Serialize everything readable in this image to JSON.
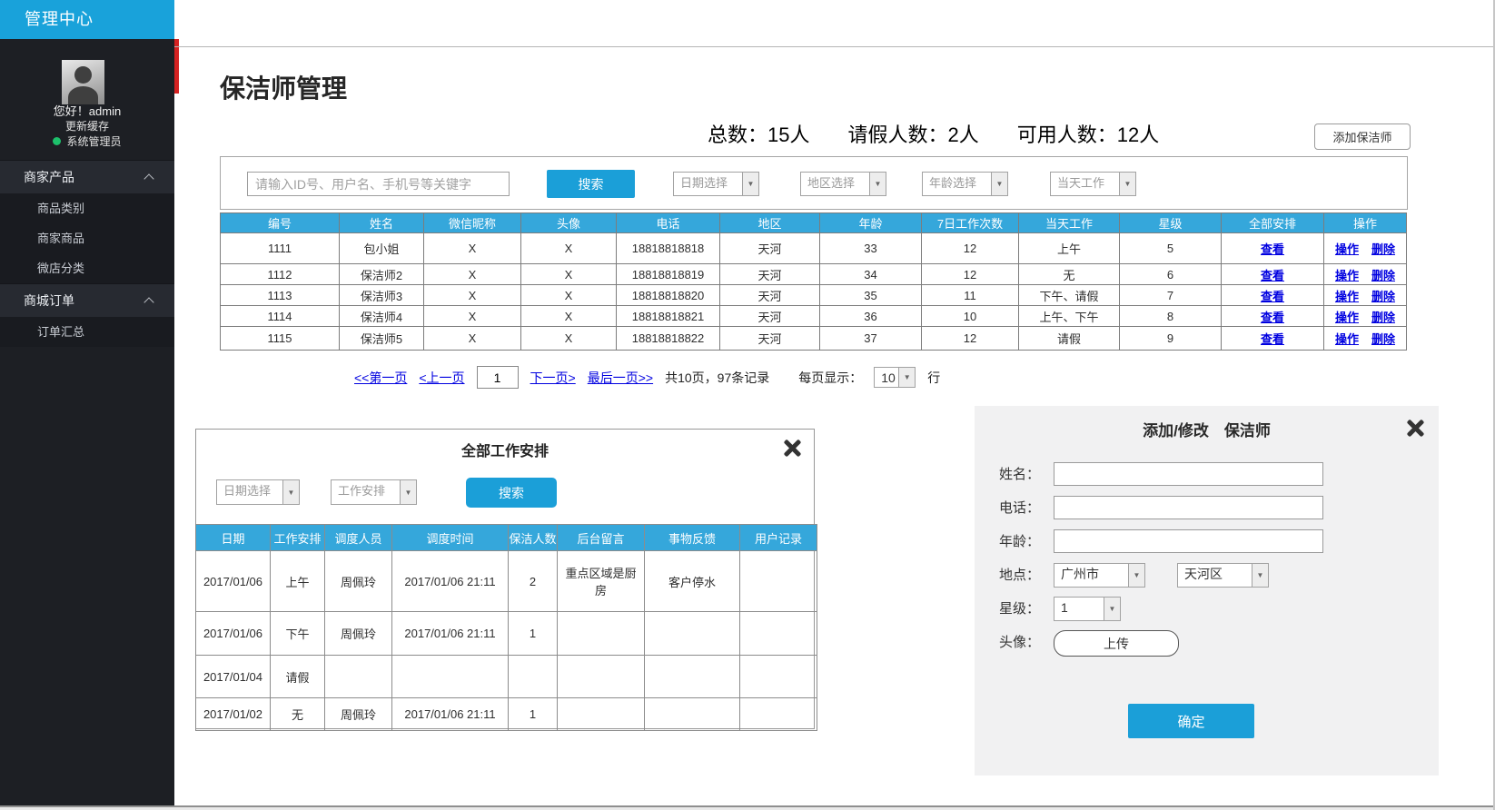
{
  "colors": {
    "accent_blue": "#1b9fd8",
    "table_header_blue": "#35a7db",
    "link_blue": "#0000e0",
    "sidebar_dark": "#1d1f24",
    "red_accent": "#d52222",
    "online_green": "#1dc06b",
    "panel_gray": "#f1f1f2"
  },
  "icons": {
    "dropdown_arrow": "▼",
    "chevron_up": "css-chevron",
    "close": "css-x",
    "online_dot": "css-circle",
    "avatar": "css-silhouette"
  },
  "app_header": {
    "title": "管理中心"
  },
  "sidebar": {
    "greeting": "您好！admin",
    "cache_link": "更新缓存",
    "role": "系统管理员",
    "menus": [
      {
        "label": "商家产品",
        "children": [
          "商品类别",
          "商家商品",
          "微店分类"
        ]
      },
      {
        "label": "商城订单",
        "children": [
          "订单汇总"
        ]
      }
    ]
  },
  "page": {
    "title": "保洁师管理",
    "stats": [
      {
        "text": "总数：15人"
      },
      {
        "text": "请假人数：2人"
      },
      {
        "text": "可用人数：12人"
      }
    ],
    "add_button": "添加保洁师"
  },
  "filters": {
    "search_placeholder": "请输入ID号、用户名、手机号等关键字",
    "search_button": "搜索",
    "dropdowns": [
      "日期选择",
      "地区选择",
      "年龄选择",
      "当天工作"
    ]
  },
  "cleaner_table": {
    "headers": [
      "编号",
      "姓名",
      "微信昵称",
      "头像",
      "电话",
      "地区",
      "年龄",
      "7日工作次数",
      "当天工作",
      "星级",
      "全部安排",
      "操作"
    ],
    "links": {
      "view": "查看",
      "operate": "操作",
      "delete": "删除"
    },
    "rows": [
      [
        "1111",
        "包小姐",
        "X",
        "X",
        "18818818818",
        "天河",
        "33",
        "12",
        "上午",
        "5"
      ],
      [
        "1112",
        "保洁师2",
        "X",
        "X",
        "18818818819",
        "天河",
        "34",
        "12",
        "无",
        "6"
      ],
      [
        "1113",
        "保洁师3",
        "X",
        "X",
        "18818818820",
        "天河",
        "35",
        "11",
        "下午、请假",
        "7"
      ],
      [
        "1114",
        "保洁师4",
        "X",
        "X",
        "18818818821",
        "天河",
        "36",
        "10",
        "上午、下午",
        "8"
      ],
      [
        "1115",
        "保洁师5",
        "X",
        "X",
        "18818818822",
        "天河",
        "37",
        "12",
        "请假",
        "9"
      ]
    ]
  },
  "pagination": {
    "first": "<<第一页",
    "prev": "<上一页",
    "page_value": "1",
    "next": "下一页>",
    "last": "最后一页>>",
    "summary": "共10页，97条记录",
    "per_page_label": "每页显示：",
    "per_page_value": "10",
    "row_unit": "行"
  },
  "schedule_modal": {
    "title": "全部工作安排",
    "dropdowns": [
      "日期选择",
      "工作安排"
    ],
    "search_button": "搜索",
    "headers": [
      "日期",
      "工作安排",
      "调度人员",
      "调度时间",
      "保洁人数",
      "后台留言",
      "事物反馈",
      "用户记录"
    ],
    "rows": [
      [
        "2017/01/06",
        "上午",
        "周佩玲",
        "2017/01/06  21:11",
        "2",
        "重点区域是厨房",
        "客户停水",
        ""
      ],
      [
        "2017/01/06",
        "下午",
        "周佩玲",
        "2017/01/06  21:11",
        "1",
        "",
        "",
        ""
      ],
      [
        "2017/01/04",
        "请假",
        "",
        "",
        "",
        "",
        "",
        ""
      ],
      [
        "2017/01/02",
        "无",
        "周佩玲",
        "2017/01/06  21:11",
        "1",
        "",
        "",
        ""
      ]
    ]
  },
  "cleaner_form": {
    "title": "添加/修改　保洁师",
    "labels": {
      "name": "姓名：",
      "phone": "电话：",
      "age": "年龄：",
      "location": "地点：",
      "star": "星级：",
      "avatar": "头像："
    },
    "values": {
      "name": "",
      "phone": "",
      "age": "",
      "city": "广州市",
      "district": "天河区",
      "star": "1"
    },
    "upload_button": "上传",
    "submit_button": "确定"
  }
}
